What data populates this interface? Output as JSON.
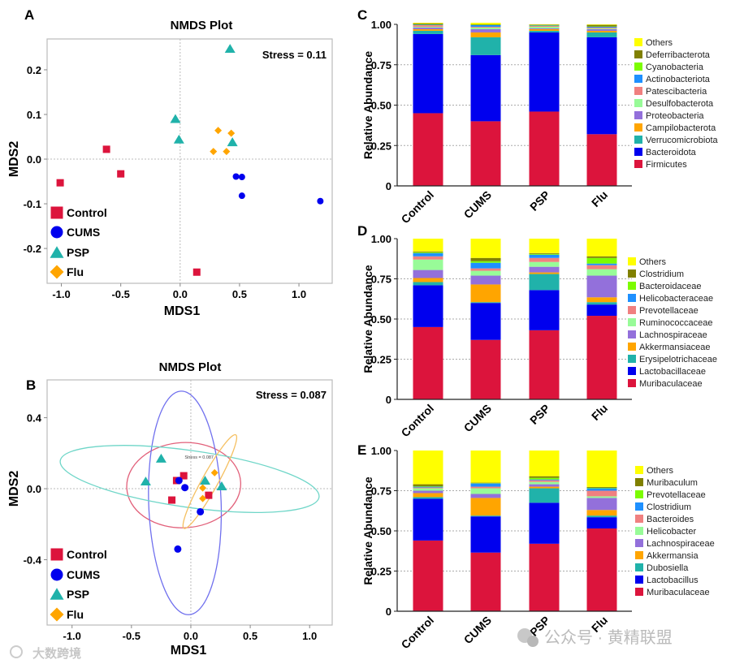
{
  "chart_data": [
    {
      "panel": "A",
      "type": "scatter",
      "title": "NMDS Plot",
      "xlabel": "MDS1",
      "ylabel": "MDS2",
      "annotation": "Stress = 0.11",
      "xlim": [
        -1.12,
        1.28
      ],
      "ylim": [
        -0.278,
        0.269
      ],
      "xticks": [
        -1.0,
        -0.5,
        0.0,
        0.5,
        1.0
      ],
      "xtick_labels": [
        "-1.0",
        "-0.5",
        "0.0",
        "0.5",
        "1.0"
      ],
      "yticks": [
        -0.2,
        -0.1,
        0.0,
        0.1,
        0.2
      ],
      "ytick_labels": [
        "-0.2",
        "-0.1",
        "0.0",
        "0.1",
        "0.2"
      ],
      "legend_position": "bottom-left",
      "series": [
        {
          "name": "Control",
          "marker": "square",
          "color": "#DC143C",
          "points": [
            [
              -0.62,
              0.022
            ],
            [
              -0.5,
              -0.033
            ],
            [
              -1.01,
              -0.053
            ],
            [
              0.14,
              -0.253
            ]
          ]
        },
        {
          "name": "CUMS",
          "marker": "circle",
          "color": "#0000EE",
          "points": [
            [
              0.47,
              -0.039
            ],
            [
              0.52,
              -0.04
            ],
            [
              0.52,
              -0.082
            ],
            [
              1.18,
              -0.094
            ]
          ]
        },
        {
          "name": "PSP",
          "marker": "triangle",
          "color": "#20B2AA",
          "points": [
            [
              0.42,
              0.247
            ],
            [
              -0.04,
              0.09
            ],
            [
              -0.01,
              0.044
            ],
            [
              0.44,
              0.038
            ]
          ]
        },
        {
          "name": "Flu",
          "marker": "diamond",
          "color": "#FFA500",
          "points": [
            [
              0.32,
              0.064
            ],
            [
              0.43,
              0.058
            ],
            [
              0.28,
              0.017
            ],
            [
              0.39,
              0.017
            ]
          ]
        }
      ]
    },
    {
      "panel": "B",
      "type": "scatter",
      "title": "NMDS Plot",
      "xlabel": "MDS1",
      "ylabel": "MDS2",
      "annotation": "Stress = 0.087",
      "inner_annotation": "Stress = 0.087",
      "xlim": [
        -1.21,
        1.19
      ],
      "ylim": [
        -0.768,
        0.613
      ],
      "xticks": [
        -1.0,
        -0.5,
        0.0,
        0.5,
        1.0
      ],
      "xtick_labels": [
        "-1.0",
        "-0.5",
        "0.0",
        "0.5",
        "1.0"
      ],
      "yticks": [
        -0.4,
        0.0,
        0.4
      ],
      "ytick_labels": [
        "-0.4",
        "0.0",
        "0.4"
      ],
      "legend_position": "bottom-left",
      "series": [
        {
          "name": "Control",
          "marker": "square",
          "color": "#DC143C",
          "points": [
            [
              -0.06,
              0.073
            ],
            [
              -0.12,
              0.046
            ],
            [
              -0.16,
              -0.064
            ],
            [
              0.15,
              -0.037
            ]
          ],
          "ellipse": {
            "cx": -0.06,
            "cy": 0.02,
            "rx": 0.48,
            "ry": 0.24,
            "angle": -3
          }
        },
        {
          "name": "CUMS",
          "marker": "circle",
          "color": "#0000EE",
          "points": [
            [
              -0.1,
              0.046
            ],
            [
              -0.05,
              0.006
            ],
            [
              0.08,
              -0.13
            ],
            [
              -0.11,
              -0.34
            ]
          ],
          "ellipse": {
            "cx": -0.05,
            "cy": -0.08,
            "rx": 0.305,
            "ry": 0.63,
            "angle": -2
          }
        },
        {
          "name": "PSP",
          "marker": "triangle",
          "color": "#20B2AA",
          "points": [
            [
              -0.25,
              0.17
            ],
            [
              -0.38,
              0.041
            ],
            [
              0.12,
              0.046
            ],
            [
              0.26,
              0.014
            ]
          ],
          "ellipse": {
            "cx": -0.01,
            "cy": 0.055,
            "rx": 1.1,
            "ry": 0.16,
            "angle": 8
          }
        },
        {
          "name": "Flu",
          "marker": "diamond",
          "color": "#FFA500",
          "points": [
            [
              0.2,
              0.09
            ],
            [
              0.1,
              0.004
            ],
            [
              0.1,
              -0.055
            ]
          ],
          "ellipse": {
            "cx": 0.16,
            "cy": 0.04,
            "rx": 0.45,
            "ry": 0.045,
            "angle": -61
          }
        }
      ]
    },
    {
      "panel": "C",
      "type": "bar",
      "stacked": true,
      "ylabel": "Relative Abundance",
      "ylim": [
        0,
        1
      ],
      "yticks": [
        0,
        0.25,
        0.5,
        0.75,
        1.0
      ],
      "ytick_labels": [
        "0",
        "0.25",
        "0.50",
        "0.75",
        "1.00"
      ],
      "categories": [
        "Control",
        "CUMS",
        "PSP",
        "Flu"
      ],
      "legend_position": "right",
      "series": [
        {
          "name": "Firmicutes",
          "color": "#DC143C",
          "values": [
            0.45,
            0.4,
            0.46,
            0.32
          ]
        },
        {
          "name": "Bacteroidota",
          "color": "#0000EE",
          "values": [
            0.49,
            0.41,
            0.49,
            0.6
          ]
        },
        {
          "name": "Verrucomicrobiota",
          "color": "#20B2AA",
          "values": [
            0.02,
            0.11,
            0.01,
            0.03
          ]
        },
        {
          "name": "Campilobacterota",
          "color": "#FFA500",
          "values": [
            0.01,
            0.03,
            0.01,
            0.01
          ]
        },
        {
          "name": "Proteobacteria",
          "color": "#9370DB",
          "values": [
            0.01,
            0.02,
            0.005,
            0.01
          ]
        },
        {
          "name": "Desulfobacterota",
          "color": "#98FB98",
          "values": [
            0.005,
            0.01,
            0.01,
            0.005
          ]
        },
        {
          "name": "Patescibacteria",
          "color": "#F08080",
          "values": [
            0.01,
            0.005,
            0.005,
            0.005
          ]
        },
        {
          "name": "Actinobacteriota",
          "color": "#1E90FF",
          "values": [
            0.003,
            0.01,
            0.003,
            0.005
          ]
        },
        {
          "name": "Cyanobacteria",
          "color": "#7CFC00",
          "values": [
            0.002,
            0.002,
            0.002,
            0.002
          ]
        },
        {
          "name": "Deferribacterota",
          "color": "#808000",
          "values": [
            0.005,
            0.003,
            0.003,
            0.01
          ]
        },
        {
          "name": "Others",
          "color": "#FFFF00",
          "values": [
            0.005,
            0.01,
            0.002,
            0.003
          ]
        }
      ]
    },
    {
      "panel": "D",
      "type": "bar",
      "stacked": true,
      "ylabel": "Relative Abundance",
      "ylim": [
        0,
        1
      ],
      "yticks": [
        0,
        0.25,
        0.5,
        0.75,
        1.0
      ],
      "ytick_labels": [
        "0",
        "0.25",
        "0.50",
        "0.75",
        "1.00"
      ],
      "categories": [
        "Control",
        "CUMS",
        "PSP",
        "Flu"
      ],
      "legend_position": "right",
      "series": [
        {
          "name": "Muribaculaceae",
          "color": "#DC143C",
          "values": [
            0.45,
            0.37,
            0.43,
            0.52
          ]
        },
        {
          "name": "Lactobacillaceae",
          "color": "#0000EE",
          "values": [
            0.26,
            0.23,
            0.25,
            0.07
          ]
        },
        {
          "name": "Erysipelotrichaceae",
          "color": "#20B2AA",
          "values": [
            0.02,
            0.005,
            0.1,
            0.015
          ]
        },
        {
          "name": "Akkermansiaceae",
          "color": "#FFA500",
          "values": [
            0.025,
            0.11,
            0.01,
            0.03
          ]
        },
        {
          "name": "Lachnospiraceae",
          "color": "#9370DB",
          "values": [
            0.05,
            0.055,
            0.035,
            0.135
          ]
        },
        {
          "name": "Ruminococcaceae",
          "color": "#98FB98",
          "values": [
            0.065,
            0.03,
            0.03,
            0.04
          ]
        },
        {
          "name": "Prevotellaceae",
          "color": "#F08080",
          "values": [
            0.02,
            0.015,
            0.025,
            0.025
          ]
        },
        {
          "name": "Helicobacteraceae",
          "color": "#1E90FF",
          "values": [
            0.02,
            0.035,
            0.02,
            0.01
          ]
        },
        {
          "name": "Bacteroidaceae",
          "color": "#7CFC00",
          "values": [
            0.005,
            0.01,
            0.005,
            0.035
          ]
        },
        {
          "name": "Clostridium",
          "color": "#808000",
          "values": [
            0.005,
            0.02,
            0.005,
            0.01
          ]
        },
        {
          "name": "Others",
          "color": "#FFFF00",
          "values": [
            0.08,
            0.12,
            0.09,
            0.11
          ]
        }
      ]
    },
    {
      "panel": "E",
      "type": "bar",
      "stacked": true,
      "ylabel": "Relative Abundance",
      "ylim": [
        0,
        1
      ],
      "yticks": [
        0,
        0.25,
        0.5,
        0.75,
        1.0
      ],
      "ytick_labels": [
        "0",
        "0.25",
        "0.50",
        "0.75",
        "1.00"
      ],
      "categories": [
        "Control",
        "CUMS",
        "PSP",
        "Flu"
      ],
      "legend_position": "right",
      "series": [
        {
          "name": "Muribaculaceae",
          "color": "#DC143C",
          "values": [
            0.44,
            0.365,
            0.42,
            0.515
          ]
        },
        {
          "name": "Lactobacillus",
          "color": "#0000EE",
          "values": [
            0.26,
            0.225,
            0.255,
            0.07
          ]
        },
        {
          "name": "Dubosiella",
          "color": "#20B2AA",
          "values": [
            0.01,
            0.005,
            0.09,
            0.01
          ]
        },
        {
          "name": "Akkermansia",
          "color": "#FFA500",
          "values": [
            0.025,
            0.11,
            0.01,
            0.035
          ]
        },
        {
          "name": "Lachnospiraceae",
          "color": "#9370DB",
          "values": [
            0.015,
            0.025,
            0.015,
            0.075
          ]
        },
        {
          "name": "Helicobacter",
          "color": "#98FB98",
          "values": [
            0.015,
            0.035,
            0.015,
            0.01
          ]
        },
        {
          "name": "Bacteroides",
          "color": "#F08080",
          "values": [
            0.005,
            0.01,
            0.01,
            0.035
          ]
        },
        {
          "name": "Clostridium",
          "color": "#1E90FF",
          "values": [
            0.005,
            0.02,
            0.005,
            0.015
          ]
        },
        {
          "name": "Prevotellaceae",
          "color": "#7CFC00",
          "values": [
            0.003,
            0.002,
            0.01,
            0.003
          ]
        },
        {
          "name": "Muribaculum",
          "color": "#808000",
          "values": [
            0.012,
            0.003,
            0.01,
            0.005
          ]
        },
        {
          "name": "Others",
          "color": "#FFFF00",
          "values": [
            0.21,
            0.2,
            0.16,
            0.227
          ]
        }
      ]
    }
  ],
  "watermarks": {
    "left": "大数跨境",
    "right": "公众号 · 黄精联盟"
  }
}
